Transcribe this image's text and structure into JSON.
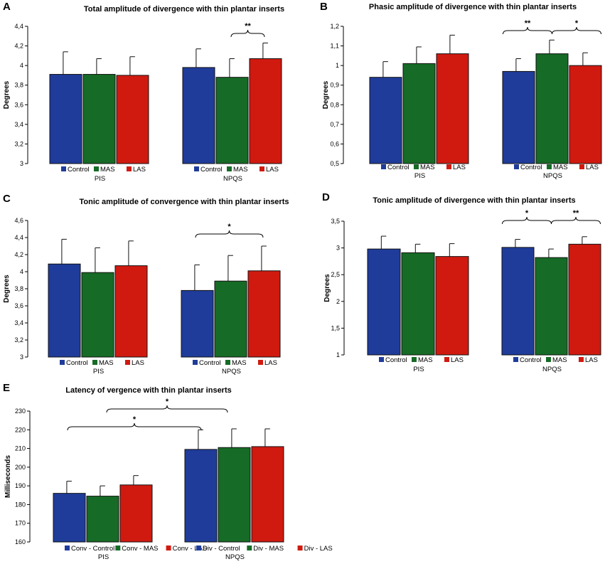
{
  "colors": {
    "Control": "#1f3c9a",
    "MAS": "#166b26",
    "LAS": "#d01a10"
  },
  "chart_data": [
    {
      "letter": "A",
      "type": "bar",
      "title": "Total amplitude of divergence with thin plantar inserts",
      "ylabel": "Degrees",
      "ylim": [
        3,
        4.4
      ],
      "yticks": [
        "3",
        "3,2",
        "3,4",
        "3,6",
        "3,8",
        "4",
        "4,2",
        "4,4"
      ],
      "groups": [
        {
          "name": "PIS",
          "bars": [
            {
              "label": "Control",
              "value": 3.91,
              "err": 0.23
            },
            {
              "label": "MAS",
              "value": 3.91,
              "err": 0.16
            },
            {
              "label": "LAS",
              "value": 3.9,
              "err": 0.19
            }
          ]
        },
        {
          "name": "NPQS",
          "bars": [
            {
              "label": "Control",
              "value": 3.98,
              "err": 0.19
            },
            {
              "label": "MAS",
              "value": 3.88,
              "err": 0.19
            },
            {
              "label": "LAS",
              "value": 4.07,
              "err": 0.16
            }
          ]
        }
      ],
      "annotations": [
        {
          "from": [
            1,
            1
          ],
          "to": [
            1,
            2
          ],
          "text": "**"
        }
      ]
    },
    {
      "letter": "B",
      "type": "bar",
      "title": "Phasic amplitude of divergence with thin plantar inserts",
      "ylabel": "Degrees",
      "ylim": [
        0.5,
        1.2
      ],
      "yticks": [
        "0,5",
        "0,6",
        "0,7",
        "0,8",
        "0,9",
        "1",
        "1,1",
        "1,2"
      ],
      "groups": [
        {
          "name": "PIS",
          "bars": [
            {
              "label": "Control",
              "value": 0.94,
              "err": 0.08
            },
            {
              "label": "MAS",
              "value": 1.01,
              "err": 0.085
            },
            {
              "label": "LAS",
              "value": 1.06,
              "err": 0.095
            }
          ]
        },
        {
          "name": "NPQS",
          "bars": [
            {
              "label": "Control",
              "value": 0.97,
              "err": 0.065
            },
            {
              "label": "MAS",
              "value": 1.06,
              "err": 0.07
            },
            {
              "label": "LAS",
              "value": 1.0,
              "err": 0.065
            }
          ]
        }
      ],
      "annotations": [
        {
          "from": [
            1,
            0
          ],
          "to": [
            1,
            1
          ],
          "text": "**"
        },
        {
          "from": [
            1,
            1
          ],
          "to": [
            1,
            2
          ],
          "text": "*"
        }
      ]
    },
    {
      "letter": "C",
      "type": "bar",
      "title": "Tonic amplitude of convergence with thin plantar inserts",
      "ylabel": "Degrees",
      "ylim": [
        3,
        4.6
      ],
      "yticks": [
        "3",
        "3,2",
        "3,4",
        "3,6",
        "3,8",
        "4",
        "4,2",
        "4,4",
        "4,6"
      ],
      "groups": [
        {
          "name": "PIS",
          "bars": [
            {
              "label": "Control",
              "value": 4.09,
              "err": 0.29
            },
            {
              "label": "MAS",
              "value": 3.99,
              "err": 0.29
            },
            {
              "label": "LAS",
              "value": 4.07,
              "err": 0.29
            }
          ]
        },
        {
          "name": "NPQS",
          "bars": [
            {
              "label": "Control",
              "value": 3.78,
              "err": 0.3
            },
            {
              "label": "MAS",
              "value": 3.89,
              "err": 0.3
            },
            {
              "label": "LAS",
              "value": 4.01,
              "err": 0.29
            }
          ]
        }
      ],
      "annotations": [
        {
          "from": [
            1,
            0
          ],
          "to": [
            1,
            2
          ],
          "text": "*"
        }
      ]
    },
    {
      "letter": "D",
      "type": "bar",
      "title": "Tonic amplitude of divergence with thin plantar inserts",
      "ylabel": "Degrees",
      "ylim": [
        1,
        3.5
      ],
      "yticks": [
        "1",
        "1,5",
        "2",
        "2,5",
        "3",
        "3,5"
      ],
      "groups": [
        {
          "name": "PIS",
          "bars": [
            {
              "label": "Control",
              "value": 2.98,
              "err": 0.24
            },
            {
              "label": "MAS",
              "value": 2.91,
              "err": 0.16
            },
            {
              "label": "LAS",
              "value": 2.84,
              "err": 0.24
            }
          ]
        },
        {
          "name": "NPQS",
          "bars": [
            {
              "label": "Control",
              "value": 3.01,
              "err": 0.15
            },
            {
              "label": "MAS",
              "value": 2.82,
              "err": 0.16
            },
            {
              "label": "LAS",
              "value": 3.07,
              "err": 0.14
            }
          ]
        }
      ],
      "annotations": [
        {
          "from": [
            1,
            0
          ],
          "to": [
            1,
            1
          ],
          "text": "*"
        },
        {
          "from": [
            1,
            1
          ],
          "to": [
            1,
            2
          ],
          "text": "**"
        }
      ]
    },
    {
      "letter": "E",
      "type": "bar",
      "title": "Latency of vergence with thin plantar inserts",
      "ylabel": "Milliseconds",
      "ylim": [
        160,
        230
      ],
      "yticks": [
        "160",
        "170",
        "180",
        "190",
        "200",
        "210",
        "220",
        "230"
      ],
      "groups": [
        {
          "name": "PIS",
          "bars": [
            {
              "label": "Conv - Control",
              "value": 186,
              "err": 6.5
            },
            {
              "label": "Conv - MAS",
              "value": 184.5,
              "err": 5.5
            },
            {
              "label": "Conv - LAS",
              "value": 190.5,
              "err": 5
            }
          ]
        },
        {
          "name": "NPQS",
          "bars": [
            {
              "label": "Div - Control",
              "value": 209.5,
              "err": 10.5
            },
            {
              "label": "Div - MAS",
              "value": 210.5,
              "err": 10
            },
            {
              "label": "Div - LAS",
              "value": 211,
              "err": 9.5
            }
          ]
        }
      ],
      "annotations": [
        {
          "from": [
            0,
            1
          ],
          "to": [
            1,
            1
          ],
          "text": "*"
        },
        {
          "from": [
            0,
            0
          ],
          "to": [
            1,
            0
          ],
          "text": "*"
        }
      ]
    }
  ]
}
